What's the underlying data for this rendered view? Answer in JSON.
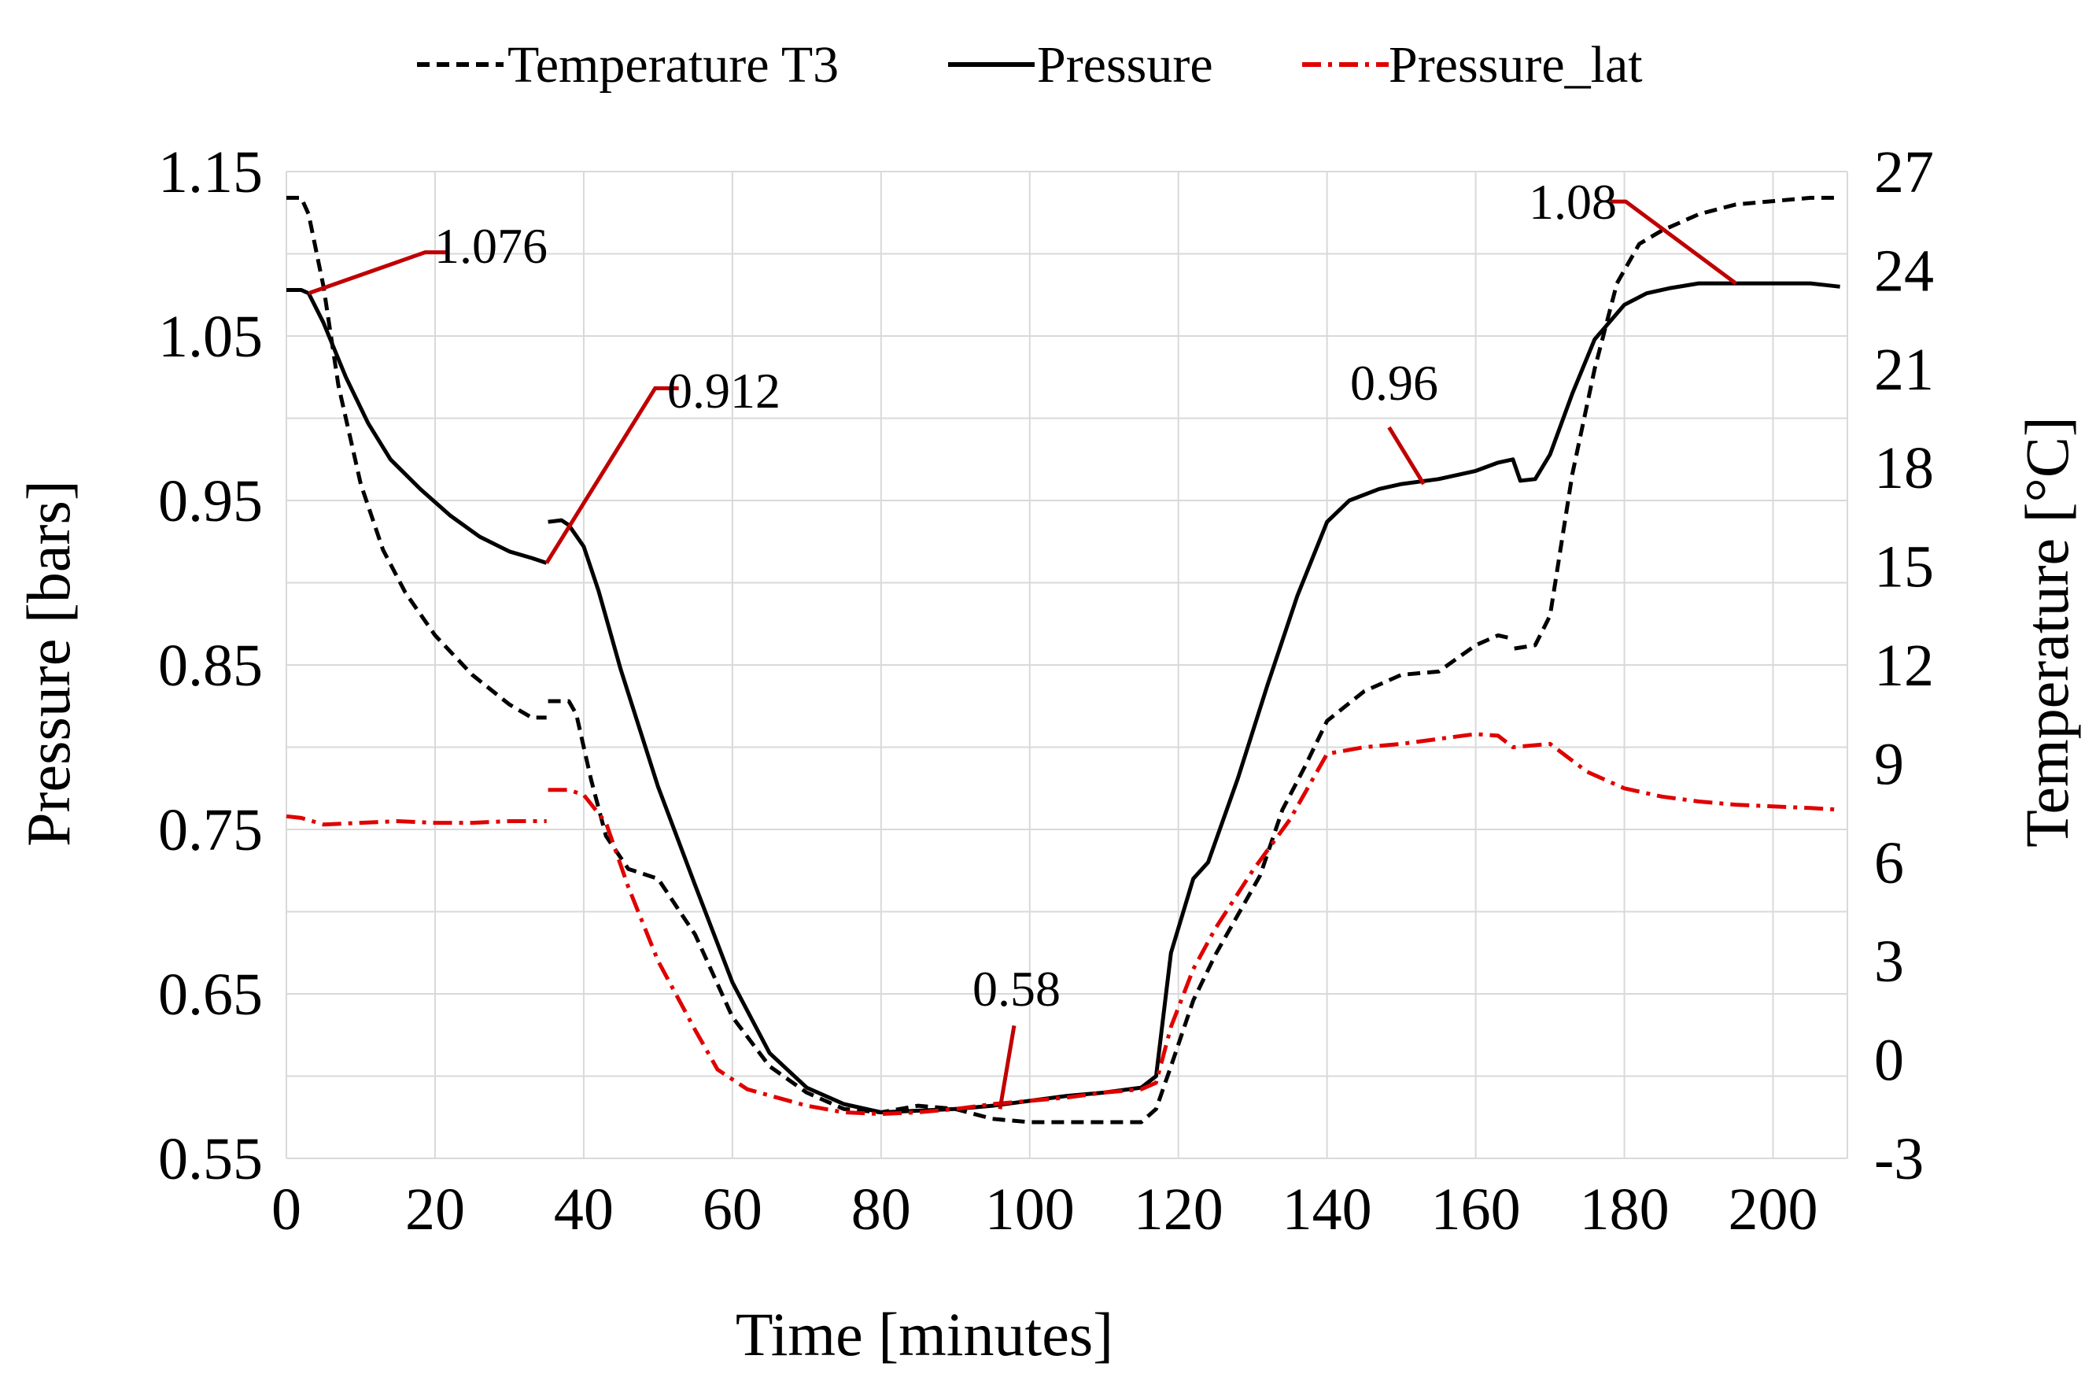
{
  "chart_data": {
    "type": "line",
    "title": "",
    "xlabel": "Time [minutes]",
    "ylabel_left": "Pressure [bars]",
    "ylabel_right": "Temperature [°C]",
    "xlim": [
      0,
      210
    ],
    "ylim_left": [
      0.55,
      1.15
    ],
    "ylim_right": [
      -3,
      27
    ],
    "xticks": [
      0,
      20,
      40,
      60,
      80,
      100,
      120,
      140,
      160,
      180,
      200
    ],
    "xtick_labels": [
      "0",
      "20",
      "40",
      "60",
      "80",
      "100",
      "120",
      "140",
      "160",
      "180",
      "200"
    ],
    "yticks_left": [
      0.55,
      0.65,
      0.75,
      0.85,
      0.95,
      1.05,
      1.15
    ],
    "ytick_labels_left": [
      "0.55",
      "0.65",
      "0.75",
      "0.85",
      "0.95",
      "1.05",
      "1.15"
    ],
    "yticks_right": [
      -3,
      0,
      3,
      6,
      9,
      12,
      15,
      18,
      21,
      24,
      27
    ],
    "ytick_labels_right": [
      "-3",
      "0",
      "3",
      "6",
      "9",
      "12",
      "15",
      "18",
      "21",
      "24",
      "27"
    ],
    "grid": true,
    "legend_position": "top",
    "series": [
      {
        "name": "Temperature T3",
        "axis": "right",
        "style": "dashed",
        "color": "#000000",
        "x": [
          0,
          2,
          3,
          5,
          7,
          10,
          13,
          16,
          20,
          25,
          30,
          33,
          35,
          35.2,
          38,
          39,
          41,
          43,
          46,
          50,
          55,
          60,
          65,
          70,
          75,
          80,
          85,
          90,
          95,
          100,
          105,
          110,
          115,
          117,
          119,
          122,
          125,
          128,
          131,
          134,
          137,
          140,
          145,
          150,
          155,
          160,
          163,
          165,
          165.2,
          168,
          170,
          173,
          176,
          179,
          182,
          185,
          190,
          195,
          200,
          205,
          209
        ],
        "y": [
          26.2,
          26.2,
          25.7,
          23.5,
          20.5,
          17.5,
          15.5,
          14.2,
          12.9,
          11.7,
          10.8,
          10.4,
          10.4,
          10.9,
          10.9,
          10.5,
          8.5,
          6.8,
          5.8,
          5.5,
          3.8,
          1.3,
          -0.2,
          -1.0,
          -1.5,
          -1.6,
          -1.4,
          -1.5,
          -1.8,
          -1.9,
          -1.9,
          -1.9,
          -1.9,
          -1.5,
          -0.2,
          1.8,
          3.2,
          4.4,
          5.6,
          7.6,
          8.9,
          10.3,
          11.2,
          11.7,
          11.8,
          12.6,
          12.9,
          12.8,
          12.5,
          12.6,
          13.5,
          17.8,
          21.0,
          23.6,
          24.8,
          25.2,
          25.7,
          26.0,
          26.1,
          26.2,
          26.2
        ]
      },
      {
        "name": "Pressure",
        "axis": "left",
        "style": "solid",
        "color": "#000000",
        "x": [
          0,
          2,
          3,
          5,
          8,
          11,
          14,
          18,
          22,
          26,
          30,
          33,
          35,
          35.2,
          37,
          38,
          40,
          42,
          45,
          50,
          55,
          60,
          65,
          70,
          75,
          80,
          85,
          90,
          95,
          100,
          105,
          110,
          115,
          117,
          119,
          122,
          124,
          128,
          132,
          136,
          140,
          143,
          147,
          150,
          155,
          160,
          163,
          165,
          166,
          168,
          170,
          173,
          176,
          180,
          183,
          186,
          190,
          195,
          200,
          205,
          207,
          209
        ],
        "y": [
          1.078,
          1.078,
          1.076,
          1.058,
          1.025,
          0.997,
          0.975,
          0.957,
          0.941,
          0.928,
          0.919,
          0.915,
          0.912,
          0.937,
          0.938,
          0.935,
          0.922,
          0.895,
          0.847,
          0.776,
          0.716,
          0.657,
          0.614,
          0.593,
          0.583,
          0.578,
          0.579,
          0.58,
          0.582,
          0.585,
          0.588,
          0.59,
          0.593,
          0.6,
          0.675,
          0.72,
          0.73,
          0.781,
          0.838,
          0.892,
          0.937,
          0.95,
          0.957,
          0.96,
          0.963,
          0.968,
          0.973,
          0.975,
          0.962,
          0.963,
          0.978,
          1.015,
          1.048,
          1.069,
          1.076,
          1.079,
          1.082,
          1.082,
          1.082,
          1.082,
          1.081,
          1.08
        ]
      },
      {
        "name": "Pressure_lat",
        "axis": "left",
        "style": "dashdot",
        "color": "#e00000",
        "x": [
          0,
          2,
          5,
          10,
          15,
          20,
          25,
          30,
          35,
          35.2,
          38,
          40,
          43,
          46,
          50,
          55,
          58,
          62,
          66,
          70,
          75,
          80,
          85,
          90,
          95,
          100,
          105,
          110,
          115,
          117,
          119,
          122,
          125,
          130,
          135,
          140,
          145,
          150,
          155,
          160,
          163,
          165,
          170,
          175,
          180,
          185,
          190,
          195,
          200,
          205,
          209
        ],
        "y": [
          0.758,
          0.757,
          0.753,
          0.754,
          0.755,
          0.754,
          0.754,
          0.755,
          0.755,
          0.774,
          0.774,
          0.771,
          0.754,
          0.715,
          0.67,
          0.628,
          0.604,
          0.592,
          0.587,
          0.582,
          0.578,
          0.577,
          0.578,
          0.58,
          0.583,
          0.585,
          0.587,
          0.59,
          0.592,
          0.596,
          0.63,
          0.665,
          0.69,
          0.725,
          0.756,
          0.796,
          0.8,
          0.802,
          0.805,
          0.808,
          0.807,
          0.8,
          0.802,
          0.785,
          0.775,
          0.77,
          0.767,
          0.765,
          0.764,
          0.763,
          0.762
        ]
      }
    ],
    "annotations": [
      {
        "text": "1.076",
        "target": [
          3,
          1.076
        ],
        "series": "Pressure"
      },
      {
        "text": "0.912",
        "target": [
          35,
          0.912
        ],
        "series": "Pressure"
      },
      {
        "text": "0.58",
        "target": [
          96,
          0.58
        ],
        "series": "Pressure"
      },
      {
        "text": "0.96",
        "target": [
          153,
          0.96
        ],
        "series": "Pressure"
      },
      {
        "text": "1.08",
        "target": [
          195,
          1.082
        ],
        "series": "Pressure"
      }
    ],
    "annotation_color": "#c00000"
  }
}
